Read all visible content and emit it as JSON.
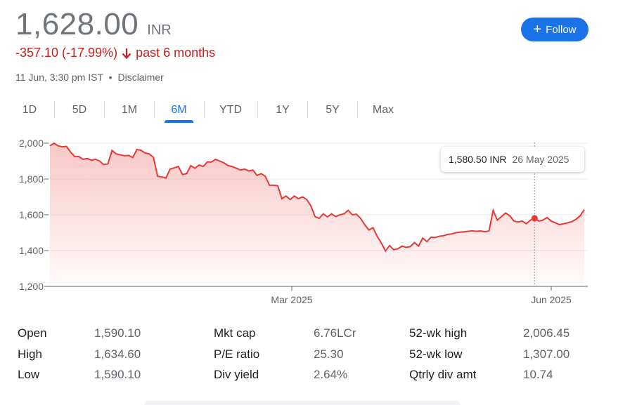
{
  "quote": {
    "price": "1,628.00",
    "currency": "INR",
    "change": "-357.10 (-17.99%)",
    "period": "past 6 months",
    "timestamp": "11 Jun, 3:30 pm IST",
    "separator": "•",
    "disclaimer": "Disclaimer"
  },
  "follow_button": {
    "label": "Follow",
    "icon": "plus-icon"
  },
  "tabs": [
    {
      "label": "1D",
      "active": false
    },
    {
      "label": "5D",
      "active": false
    },
    {
      "label": "1M",
      "active": false
    },
    {
      "label": "6M",
      "active": true
    },
    {
      "label": "YTD",
      "active": false
    },
    {
      "label": "1Y",
      "active": false
    },
    {
      "label": "5Y",
      "active": false
    },
    {
      "label": "Max",
      "active": false
    }
  ],
  "tooltip": {
    "price": "1,580.50 INR",
    "date": "26 May 2025"
  },
  "chart_data": {
    "type": "area",
    "yticks": [
      "2,000",
      "1,800",
      "1,600",
      "1,400",
      "1,200"
    ],
    "xticks": [
      "Mar 2025",
      "Jun 2025"
    ],
    "ylim": [
      1200,
      2000
    ],
    "line_color": "#e53935",
    "grid": true,
    "highlight": {
      "date": "26 May 2025",
      "value": 1580.5
    },
    "values": [
      1985,
      2000,
      1985,
      1980,
      1982,
      1950,
      1925,
      1925,
      1910,
      1915,
      1905,
      1910,
      1900,
      1880,
      1885,
      1960,
      1940,
      1935,
      1930,
      1932,
      1920,
      1965,
      1960,
      1945,
      1940,
      1920,
      1815,
      1812,
      1805,
      1855,
      1862,
      1870,
      1825,
      1830,
      1875,
      1860,
      1878,
      1870,
      1895,
      1895,
      1910,
      1900,
      1890,
      1875,
      1870,
      1860,
      1850,
      1855,
      1845,
      1850,
      1820,
      1830,
      1815,
      1765,
      1765,
      1762,
      1690,
      1705,
      1685,
      1705,
      1690,
      1700,
      1685,
      1650,
      1590,
      1580,
      1605,
      1588,
      1605,
      1590,
      1600,
      1605,
      1625,
      1600,
      1603,
      1580,
      1545,
      1515,
      1528,
      1480,
      1442,
      1398,
      1428,
      1405,
      1410,
      1425,
      1418,
      1422,
      1445,
      1425,
      1470,
      1450,
      1475,
      1473,
      1480,
      1483,
      1490,
      1493,
      1500,
      1503,
      1505,
      1508,
      1510,
      1508,
      1510,
      1505,
      1510,
      1625,
      1570,
      1590,
      1610,
      1595,
      1565,
      1560,
      1565,
      1550,
      1570,
      1580.5,
      1565,
      1570,
      1585,
      1565,
      1555,
      1545,
      1550,
      1555,
      1562,
      1575,
      1595,
      1628
    ]
  },
  "stats": [
    {
      "label": "Open",
      "value": "1,590.10"
    },
    {
      "label": "High",
      "value": "1,634.60"
    },
    {
      "label": "Low",
      "value": "1,590.10"
    },
    {
      "label": "Mkt cap",
      "value": "6.76LCr"
    },
    {
      "label": "P/E ratio",
      "value": "25.30"
    },
    {
      "label": "Div yield",
      "value": "2.64%"
    },
    {
      "label": "52-wk high",
      "value": "2,006.45"
    },
    {
      "label": "52-wk low",
      "value": "1,307.00"
    },
    {
      "label": "Qtrly div amt",
      "value": "10.74"
    }
  ]
}
